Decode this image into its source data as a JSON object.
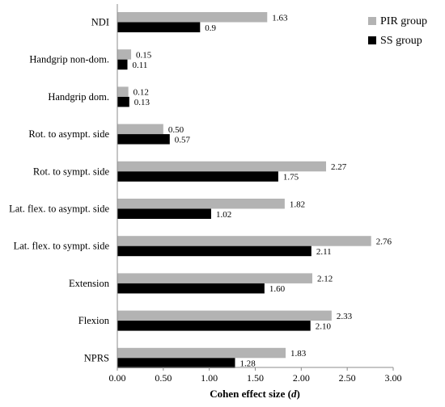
{
  "chart_data": {
    "type": "bar",
    "orientation": "horizontal",
    "title": "",
    "xlabel_main": "Cohen effect size (",
    "xlabel_var": "d",
    "xlabel_close": ")",
    "ylabel": "",
    "xlim": [
      0,
      3
    ],
    "x_ticks": [
      "0.00",
      "0.50",
      "1.00",
      "1.50",
      "2.00",
      "2.50",
      "3.00"
    ],
    "x_tick_values": [
      0,
      0.5,
      1,
      1.5,
      2,
      2.5,
      3
    ],
    "grid": false,
    "legend_position": "top-right",
    "categories": [
      "NDI",
      "Handgrip non-dom.",
      "Handgrip dom.",
      "Rot. to asympt. side",
      "Rot. to sympt. side",
      "Lat. flex. to asympt. side",
      "Lat. flex. to sympt. side",
      "Extension",
      "Flexion",
      "NPRS"
    ],
    "series": [
      {
        "name": "PIR group",
        "color": "#b3b3b3",
        "values": [
          1.63,
          0.15,
          0.12,
          0.5,
          2.27,
          1.82,
          2.76,
          2.12,
          2.33,
          1.83
        ],
        "labels": [
          "1.63",
          "0.15",
          "0.12",
          "0.50",
          "2.27",
          "1.82",
          "2.76",
          "2.12",
          "2.33",
          "1.83"
        ]
      },
      {
        "name": "SS group",
        "color": "#000000",
        "values": [
          0.9,
          0.11,
          0.13,
          0.57,
          1.75,
          1.02,
          2.11,
          1.6,
          2.1,
          1.28
        ],
        "labels": [
          "0.9",
          "0.11",
          "0.13",
          "0.57",
          "1.75",
          "1.02",
          "2.11",
          "1.60",
          "2.10",
          "1.28"
        ]
      }
    ]
  }
}
